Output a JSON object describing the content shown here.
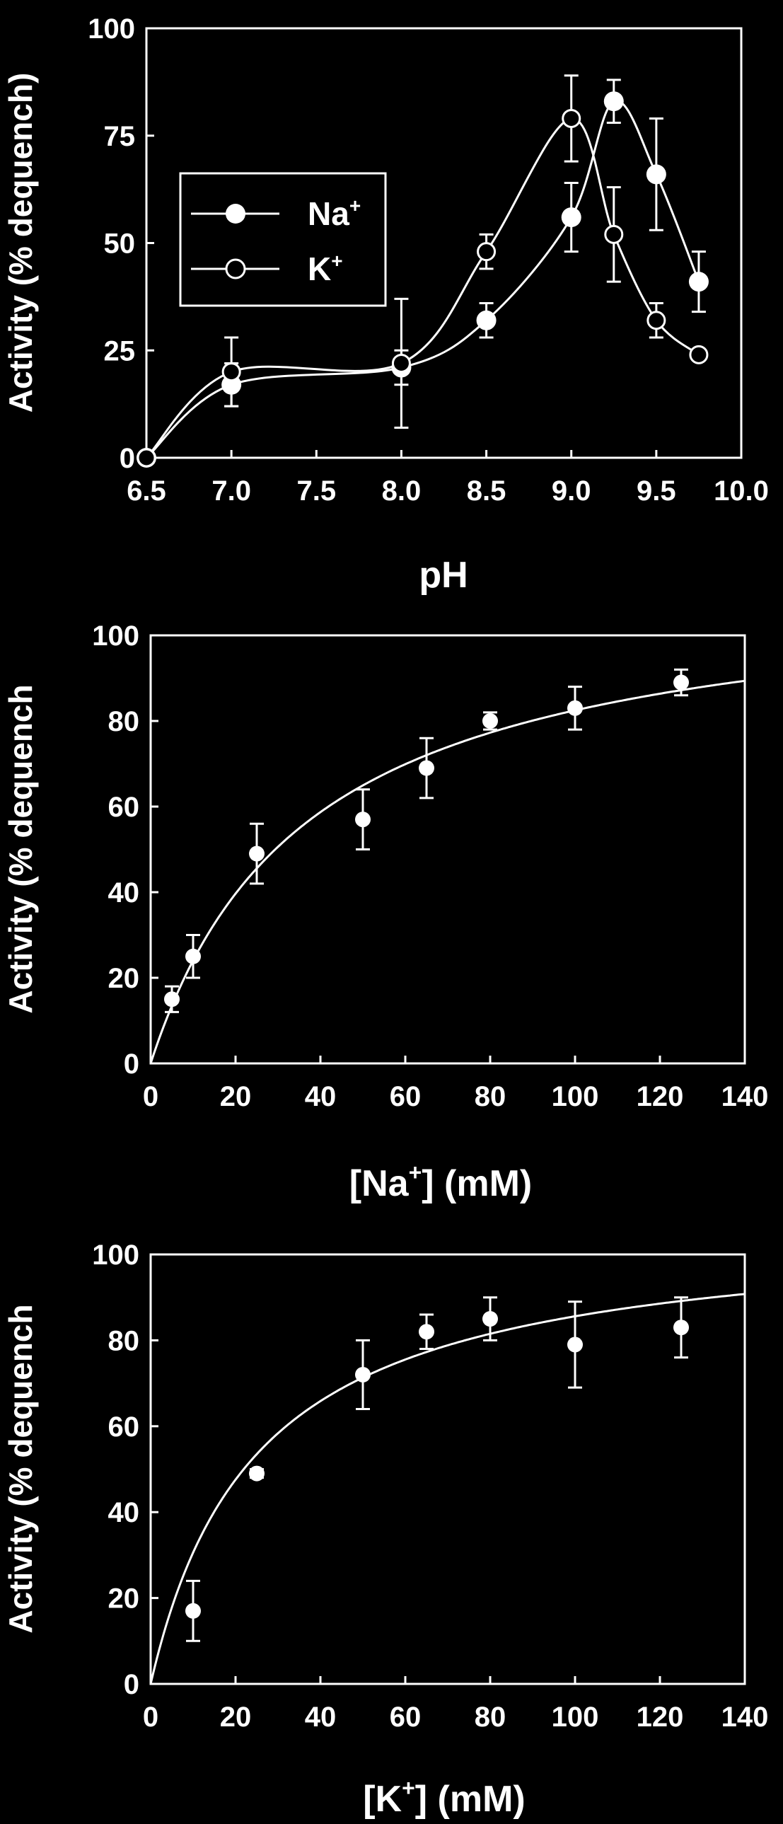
{
  "chart_data": [
    {
      "type": "scatter",
      "xlabel": "pH",
      "ylabel": "Activity (% dequench)",
      "xlim": [
        6.5,
        10.0
      ],
      "ylim": [
        0,
        100
      ],
      "xticks": [
        "6.5",
        "7.0",
        "7.5",
        "8.0",
        "8.5",
        "9.0",
        "9.5",
        "10.0"
      ],
      "yticks": [
        "0",
        "25",
        "50",
        "75",
        "100"
      ],
      "legend": "top-left",
      "grid": false,
      "series": [
        {
          "name": "Na",
          "marker": "filled",
          "x": [
            6.5,
            7.0,
            8.0,
            8.5,
            9.0,
            9.25,
            9.5,
            9.75
          ],
          "y": [
            0,
            17,
            21,
            32,
            56,
            83,
            66,
            41
          ],
          "err": [
            0,
            5,
            4,
            4,
            8,
            5,
            13,
            7
          ]
        },
        {
          "name": "K",
          "marker": "open",
          "x": [
            6.5,
            7.0,
            8.0,
            8.5,
            9.0,
            9.25,
            9.5,
            9.75
          ],
          "y": [
            0,
            20,
            22,
            48,
            79,
            52,
            32,
            24
          ],
          "err": [
            0,
            8,
            15,
            4,
            10,
            11,
            4,
            0
          ]
        }
      ]
    },
    {
      "type": "scatter",
      "xlabel": "[Na+] (mM)",
      "ylabel": "Activity (% dequench",
      "xlim": [
        0,
        140
      ],
      "ylim": [
        0,
        100
      ],
      "xticks": [
        "0",
        "20",
        "40",
        "60",
        "80",
        "100",
        "120",
        "140"
      ],
      "yticks": [
        "0",
        "20",
        "40",
        "60",
        "80",
        "100"
      ],
      "grid": false,
      "fit": {
        "vmax": 113,
        "km": 37
      },
      "series": [
        {
          "x": [
            5,
            10,
            25,
            50,
            65,
            80,
            100,
            125
          ],
          "y": [
            15,
            25,
            49,
            57,
            69,
            80,
            83,
            89
          ],
          "err": [
            3,
            5,
            7,
            7,
            7,
            2,
            5,
            3
          ]
        }
      ]
    },
    {
      "type": "scatter",
      "xlabel": "[K+] (mM)",
      "ylabel": "Activity (% dequench",
      "xlim": [
        0,
        140
      ],
      "ylim": [
        0,
        100
      ],
      "xticks": [
        "0",
        "20",
        "40",
        "60",
        "80",
        "100",
        "120",
        "140"
      ],
      "yticks": [
        "0",
        "20",
        "40",
        "60",
        "80",
        "100"
      ],
      "grid": false,
      "fit": {
        "vmax": 107,
        "km": 25
      },
      "series": [
        {
          "x": [
            10,
            25,
            50,
            65,
            80,
            100,
            125
          ],
          "y": [
            17,
            49,
            72,
            82,
            85,
            79,
            83
          ],
          "err": [
            7,
            1,
            8,
            4,
            5,
            10,
            7
          ]
        }
      ]
    }
  ]
}
